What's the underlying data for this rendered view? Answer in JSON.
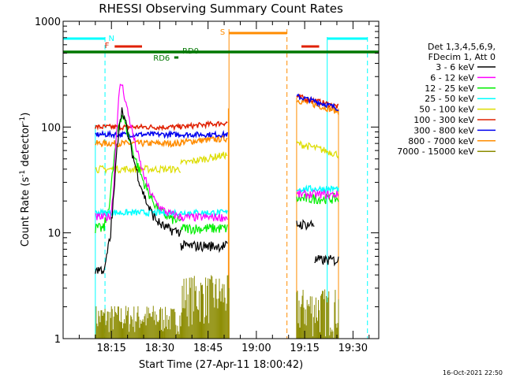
{
  "chart_data": {
    "type": "line",
    "title": "RHESSI Observing Summary Count Rates",
    "xlabel": "Start Time (27-Apr-11 18:00:42)",
    "ylabel_parts": [
      "Count Rate (s",
      "-1",
      " detector",
      "-1",
      ")"
    ],
    "y_scale": "log",
    "ylim": [
      1,
      1000
    ],
    "xlim_minutes": [
      0,
      98
    ],
    "y_ticks": [
      {
        "value": 1,
        "label": "1"
      },
      {
        "value": 10,
        "label": "10"
      },
      {
        "value": 100,
        "label": "100"
      },
      {
        "value": 1000,
        "label": "1000"
      }
    ],
    "x_ticks": [
      {
        "minute": 15,
        "label": "18:15"
      },
      {
        "minute": 30,
        "label": "18:30"
      },
      {
        "minute": 45,
        "label": "18:45"
      },
      {
        "minute": 60,
        "label": "19:00"
      },
      {
        "minute": 75,
        "label": "19:15"
      },
      {
        "minute": 90,
        "label": "19:30"
      }
    ],
    "legend_header": [
      "Det 1,3,4,5,6,9,",
      "FDecim 1, Att 0"
    ],
    "series": [
      {
        "name": "3 - 6 keV",
        "color": "#000000"
      },
      {
        "name": "6 - 12 keV",
        "color": "#ff00ff"
      },
      {
        "name": "12 - 25 keV",
        "color": "#00ee00"
      },
      {
        "name": "25 - 50 keV",
        "color": "#00ffff"
      },
      {
        "name": "50 - 100 keV",
        "color": "#dddd00"
      },
      {
        "name": "100 - 300 keV",
        "color": "#e02000"
      },
      {
        "name": "300 - 800 keV",
        "color": "#0000ee"
      },
      {
        "name": "800 - 7000 keV",
        "color": "#ff8c00"
      },
      {
        "name": "7000 - 15000 keV",
        "color": "#8b8b00"
      }
    ],
    "flag_labels": {
      "N": "N",
      "F": "F",
      "S": "S",
      "RD0": "RD0",
      "RD6": "RD6"
    }
  },
  "timestamp": "16-Oct-2021 22:50"
}
